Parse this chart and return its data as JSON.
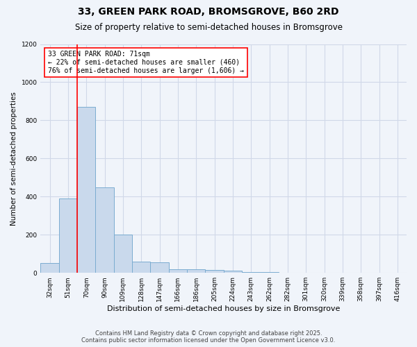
{
  "title_line1": "33, GREEN PARK ROAD, BROMSGROVE, B60 2RD",
  "title_line2": "Size of property relative to semi-detached houses in Bromsgrove",
  "xlabel": "Distribution of semi-detached houses by size in Bromsgrove",
  "ylabel": "Number of semi-detached properties",
  "categories": [
    "32sqm",
    "51sqm",
    "70sqm",
    "90sqm",
    "109sqm",
    "128sqm",
    "147sqm",
    "166sqm",
    "186sqm",
    "205sqm",
    "224sqm",
    "243sqm",
    "262sqm",
    "282sqm",
    "301sqm",
    "320sqm",
    "339sqm",
    "358sqm",
    "397sqm",
    "416sqm"
  ],
  "values": [
    50,
    390,
    870,
    450,
    200,
    60,
    55,
    20,
    20,
    15,
    10,
    5,
    3,
    0,
    0,
    0,
    0,
    0,
    0,
    0
  ],
  "bar_color": "#c9d9ec",
  "bar_edgecolor": "#7aacd0",
  "red_line_index": 1.5,
  "annotation_text_line1": "33 GREEN PARK ROAD: 71sqm",
  "annotation_text_line2": "← 22% of semi-detached houses are smaller (460)",
  "annotation_text_line3": "76% of semi-detached houses are larger (1,606) →",
  "ylim_max": 1200,
  "grid_color": "#d0d8e8",
  "background_color": "#f0f4fa",
  "footnote_line1": "Contains HM Land Registry data © Crown copyright and database right 2025.",
  "footnote_line2": "Contains public sector information licensed under the Open Government Licence v3.0.",
  "title_fontsize": 10,
  "subtitle_fontsize": 8.5,
  "footnote_fontsize": 6,
  "ylabel_fontsize": 7.5,
  "xlabel_fontsize": 8,
  "tick_fontsize": 6.5
}
